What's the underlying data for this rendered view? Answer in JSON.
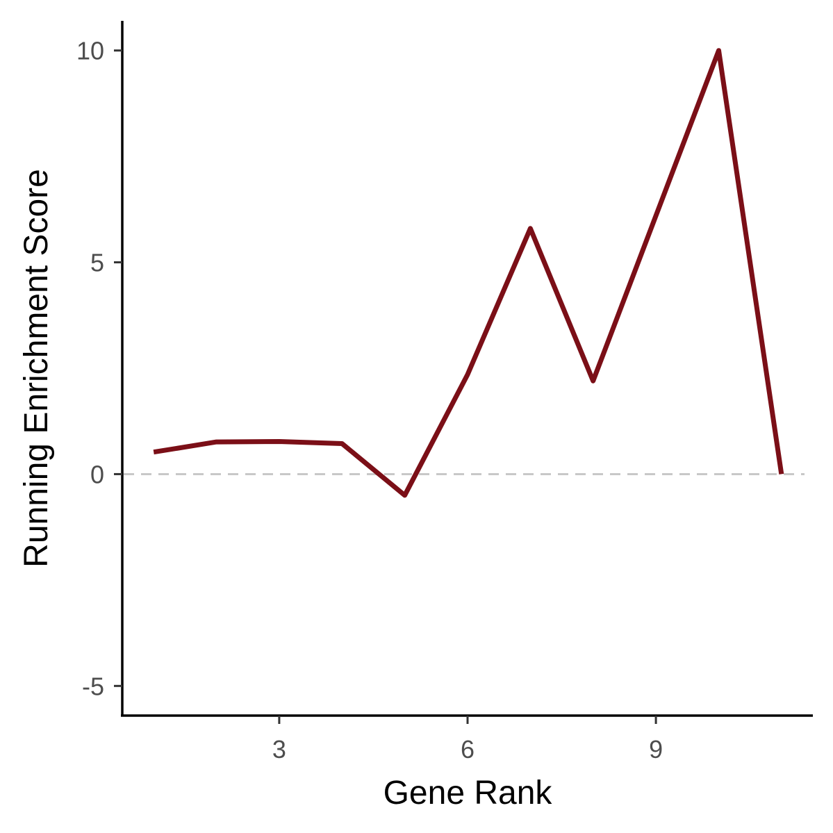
{
  "chart_data": {
    "type": "line",
    "xlabel": "Gene Rank",
    "ylabel": "Running Enrichment Score",
    "xlim": [
      0.5,
      11.5
    ],
    "ylim": [
      -5.7,
      10.7
    ],
    "x_ticks": [
      3,
      6,
      9
    ],
    "y_ticks": [
      -5,
      0,
      5,
      10
    ],
    "grid": false,
    "reference_line": {
      "y": 0,
      "style": "dashed",
      "color": "#c8c8c8"
    },
    "series": [
      {
        "color": "#7b0f17",
        "x": [
          1,
          2,
          3,
          4,
          5,
          6,
          7,
          8,
          9,
          10,
          11
        ],
        "y": [
          0.52,
          0.76,
          0.77,
          0.72,
          -0.5,
          2.35,
          5.8,
          2.2,
          6.1,
          10.0,
          0.0
        ]
      }
    ]
  }
}
